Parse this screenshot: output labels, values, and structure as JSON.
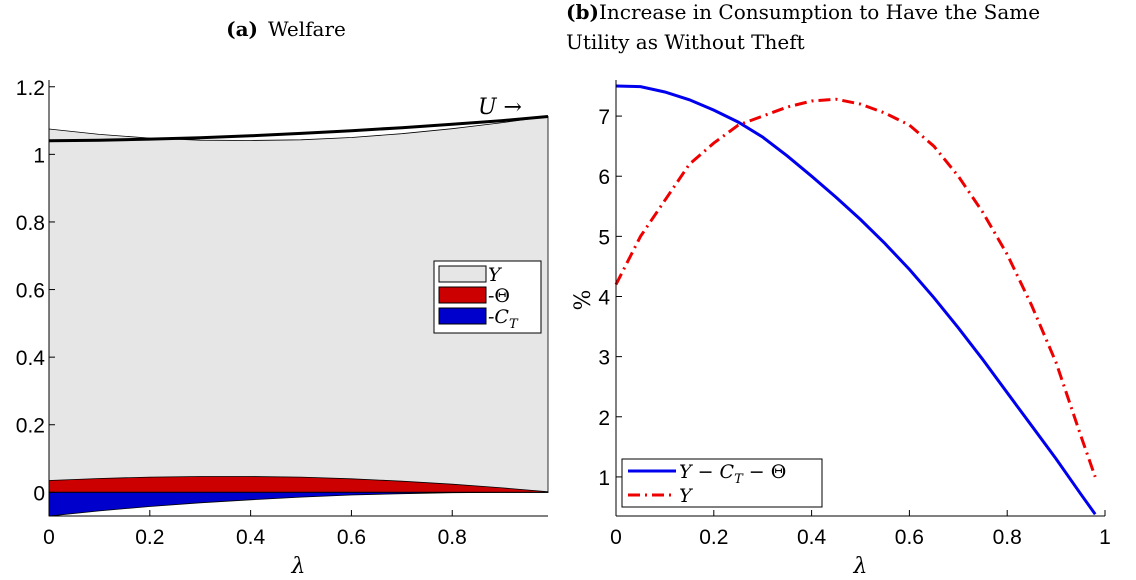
{
  "chart_data": [
    {
      "type": "area",
      "title_label": "(a)",
      "title": "Welfare",
      "xlabel": "λ",
      "ylabel": "",
      "xlim": [
        0,
        0.99
      ],
      "ylim": [
        -0.07,
        1.22
      ],
      "xticks": [
        0,
        0.2,
        0.4,
        0.6,
        0.8
      ],
      "yticks": [
        0,
        0.2,
        0.4,
        0.6,
        0.8,
        1,
        1.2
      ],
      "ytick_labels": [
        "0",
        "0.2",
        "0.4",
        "0.6",
        "0.8",
        "1",
        "1.2"
      ],
      "x": [
        0,
        0.1,
        0.2,
        0.3,
        0.4,
        0.5,
        0.6,
        0.7,
        0.8,
        0.9,
        0.99
      ],
      "series": [
        {
          "name": "Y",
          "color": "#e6e6e6",
          "kind": "area",
          "values": [
            1.075,
            1.059,
            1.048,
            1.042,
            1.041,
            1.043,
            1.05,
            1.061,
            1.076,
            1.094,
            1.112
          ]
        },
        {
          "name": "-Θ",
          "color": "#cc0000",
          "kind": "area",
          "values": [
            0.035,
            0.041,
            0.045,
            0.047,
            0.047,
            0.045,
            0.04,
            0.033,
            0.024,
            0.013,
            0.002
          ]
        },
        {
          "name": "-C_T",
          "color": "#0000cc",
          "kind": "area",
          "values": [
            -0.07,
            -0.055,
            -0.042,
            -0.031,
            -0.022,
            -0.014,
            -0.008,
            -0.004,
            -0.001,
            0.0,
            0.0
          ]
        },
        {
          "name": "U",
          "color": "#000000",
          "kind": "line",
          "values": [
            1.04,
            1.042,
            1.045,
            1.049,
            1.055,
            1.062,
            1.07,
            1.079,
            1.089,
            1.1,
            1.112
          ]
        }
      ],
      "annotation": "U →",
      "legend": {
        "position": "right",
        "entries": [
          "Y",
          "-Θ",
          "-C_T"
        ]
      }
    },
    {
      "type": "line",
      "title_label": "(b)",
      "title_line1": "Increase in Consumption to Have the Same",
      "title_line2": "Utility as Without Theft",
      "xlabel": "λ",
      "ylabel": "%",
      "xlim": [
        0,
        1
      ],
      "ylim": [
        0.35,
        7.6
      ],
      "xticks": [
        0,
        0.2,
        0.4,
        0.6,
        0.8,
        1
      ],
      "xtick_labels": [
        "0",
        "0.2",
        "0.4",
        "0.6",
        "0.8",
        "1"
      ],
      "yticks": [
        1,
        2,
        3,
        4,
        5,
        6,
        7
      ],
      "x": [
        0,
        0.05,
        0.1,
        0.15,
        0.2,
        0.25,
        0.3,
        0.35,
        0.4,
        0.45,
        0.5,
        0.55,
        0.6,
        0.65,
        0.7,
        0.75,
        0.8,
        0.85,
        0.9,
        0.95,
        0.98
      ],
      "series": [
        {
          "name": "Y − C_T − Θ",
          "color": "#0000ee",
          "dash": "solid",
          "values": [
            7.5,
            7.49,
            7.4,
            7.27,
            7.1,
            6.9,
            6.65,
            6.34,
            6.0,
            5.65,
            5.28,
            4.88,
            4.45,
            3.98,
            3.48,
            2.95,
            2.4,
            1.85,
            1.3,
            0.72,
            0.38
          ]
        },
        {
          "name": "Y",
          "color": "#ee0000",
          "dash": "dashdot",
          "values": [
            4.2,
            5.0,
            5.6,
            6.2,
            6.55,
            6.85,
            7.0,
            7.15,
            7.25,
            7.28,
            7.2,
            7.05,
            6.85,
            6.5,
            6.0,
            5.4,
            4.7,
            3.85,
            2.9,
            1.7,
            1.0
          ]
        }
      ],
      "legend": {
        "position": "bottom-left",
        "entries": [
          "Y − C_T − Θ",
          "Y"
        ]
      }
    }
  ]
}
